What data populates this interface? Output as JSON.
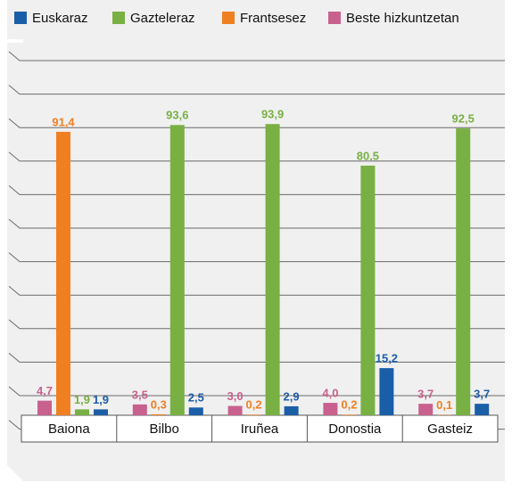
{
  "chart_data": {
    "type": "bar",
    "categories": [
      "Baiona",
      "Bilbo",
      "Iruñea",
      "Donostia",
      "Gasteiz"
    ],
    "ylim": [
      0,
      100
    ],
    "series": [
      {
        "name": "Euskaraz",
        "color": "#1b5ea8",
        "values": [
          1.9,
          2.5,
          2.9,
          15.2,
          3.7
        ],
        "value_labels": [
          "1,9",
          "2,5",
          "2,9",
          "15,2",
          "3,7"
        ]
      },
      {
        "name": "Gazteleraz",
        "color": "#78b043",
        "values": [
          1.9,
          93.6,
          93.9,
          80.5,
          92.5
        ],
        "value_labels": [
          "1,9",
          "93,6",
          "93,9",
          "80,5",
          "92,5"
        ]
      },
      {
        "name": "Frantsesez",
        "color": "#f07f22",
        "values": [
          91.4,
          0.3,
          0.2,
          0.2,
          0.1
        ],
        "value_labels": [
          "91,4",
          "0,3",
          "0,2",
          "0,2",
          "0,1"
        ]
      },
      {
        "name": "Beste hizkuntzetan",
        "color": "#c8618e",
        "values": [
          4.7,
          3.5,
          3.0,
          4.0,
          3.7
        ],
        "value_labels": [
          "4,7",
          "3,5",
          "3,0",
          "4,0",
          "3,7"
        ]
      }
    ]
  }
}
